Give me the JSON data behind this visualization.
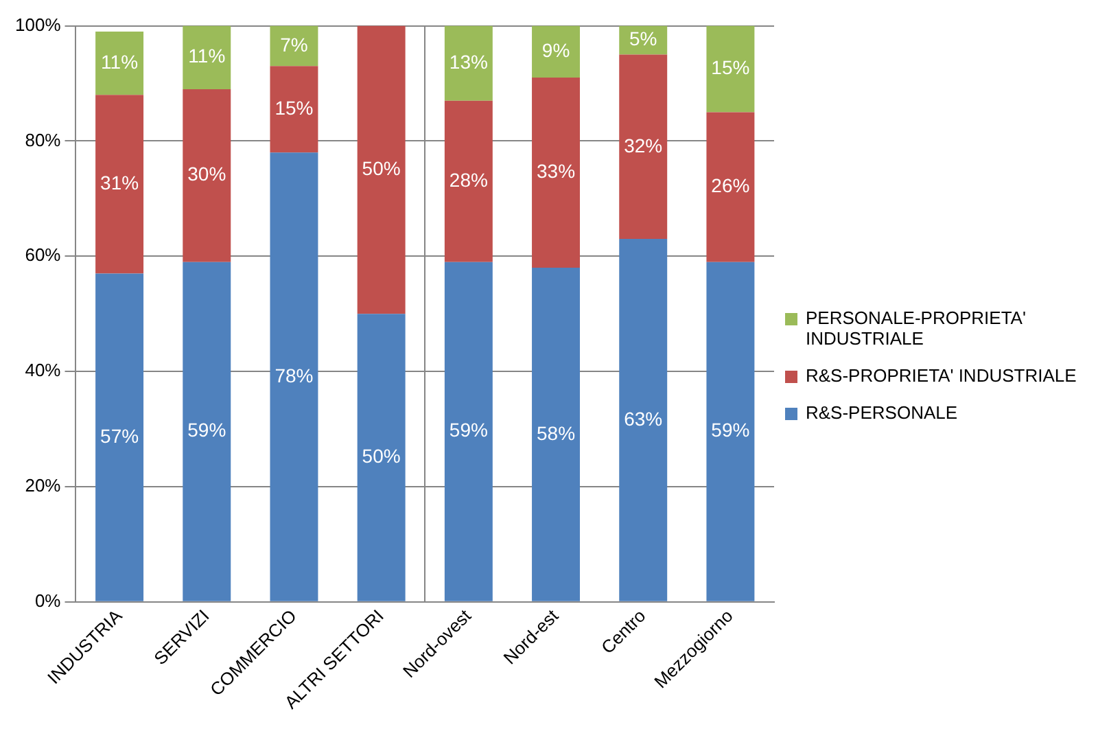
{
  "chart_data": {
    "type": "bar",
    "stacked": true,
    "categories": [
      "INDUSTRIA",
      "SERVIZI",
      "COMMERCIO",
      "ALTRI SETTORI",
      "Nord-ovest",
      "Nord-est",
      "Centro",
      "Mezzogiorno"
    ],
    "series": [
      {
        "name": "R&S-PERSONALE",
        "color": "#4f81bd",
        "values": [
          57,
          59,
          78,
          50,
          59,
          58,
          63,
          59
        ],
        "value_labels": [
          "57%",
          "59%",
          "78%",
          "50%",
          "59%",
          "58%",
          "63%",
          "59%"
        ]
      },
      {
        "name": "R&S-PROPRIETA' INDUSTRIALE",
        "color": "#c0504d",
        "values": [
          31,
          30,
          15,
          50,
          28,
          33,
          32,
          26
        ],
        "value_labels": [
          "31%",
          "30%",
          "15%",
          "50%",
          "28%",
          "33%",
          "32%",
          "26%"
        ]
      },
      {
        "name": "PERSONALE-PROPRIETA' INDUSTRIALE",
        "color": "#9bbb59",
        "values": [
          11,
          11,
          7,
          null,
          13,
          9,
          5,
          15
        ],
        "value_labels": [
          "11%",
          "11%",
          "7%",
          null,
          "13%",
          "9%",
          "5%",
          "15%"
        ]
      }
    ],
    "ylim": [
      0,
      100
    ],
    "yticks": [
      {
        "value": 0,
        "label": "0%"
      },
      {
        "value": 20,
        "label": "20%"
      },
      {
        "value": 40,
        "label": "40%"
      },
      {
        "value": 60,
        "label": "60%"
      },
      {
        "value": 80,
        "label": "80%"
      },
      {
        "value": 100,
        "label": "100%"
      }
    ],
    "grid": "y",
    "legend": "right"
  }
}
